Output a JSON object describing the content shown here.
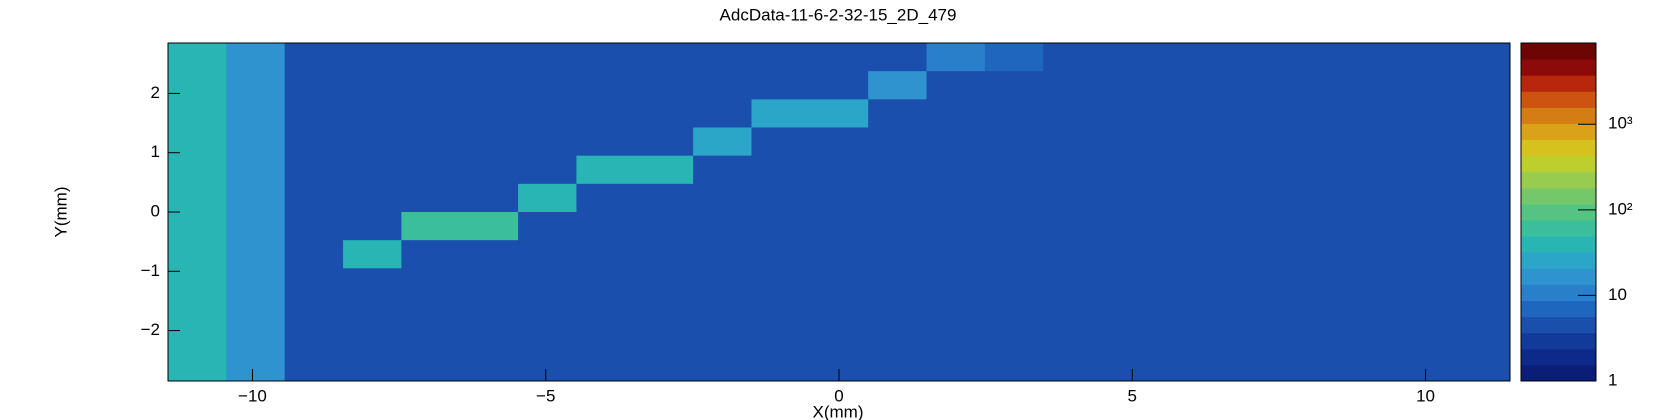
{
  "chart_data": {
    "type": "heatmap",
    "title": "AdcData-11-6-2-32-15_2D_479",
    "x_label": "X(mm)",
    "y_label": "Y(mm)",
    "xlim": [
      -11.44,
      11.44
    ],
    "ylim": [
      -2.85,
      2.85
    ],
    "xticks": [
      {
        "value": -10,
        "label": "−10"
      },
      {
        "value": -5,
        "label": "−5"
      },
      0,
      5,
      10
    ],
    "yticks": [
      {
        "value": -2,
        "label": "−2"
      },
      {
        "value": -1,
        "label": "−1"
      },
      0,
      1,
      2
    ],
    "zlim": [
      1,
      8900
    ],
    "zlog": true,
    "zticks": [
      1,
      10,
      {
        "value": 100,
        "label": "10²"
      },
      {
        "value": 1000,
        "label": "10³"
      }
    ],
    "palette": [
      "#0a1e78",
      "#0d2a8a",
      "#123a9a",
      "#1a4fae",
      "#1f66bf",
      "#2a7fcb",
      "#2f93cf",
      "#2ba6c8",
      "#28b5b3",
      "#3abf9a",
      "#55c483",
      "#75c86a",
      "#98cc4f",
      "#bccf2c",
      "#d5c21c",
      "#d9a218",
      "#d47d14",
      "#cc5410",
      "#b8270d",
      "#8c0b08",
      "#6e0505"
    ],
    "z": [
      [
        40,
        18,
        4,
        5,
        4,
        4,
        5,
        4,
        4,
        5,
        4,
        5,
        4,
        12,
        8,
        4,
        5,
        4,
        4,
        5,
        4,
        5,
        4
      ],
      [
        40,
        18,
        5,
        4,
        4,
        5,
        4,
        5,
        4,
        4,
        5,
        4,
        15,
        5,
        4,
        5,
        4,
        4,
        5,
        4,
        4,
        5,
        4
      ],
      [
        40,
        18,
        4,
        4,
        5,
        4,
        4,
        4,
        5,
        4,
        25,
        25,
        4,
        4,
        5,
        4,
        5,
        4,
        4,
        5,
        4,
        4,
        5
      ],
      [
        40,
        18,
        4,
        5,
        4,
        4,
        5,
        4,
        4,
        30,
        5,
        4,
        5,
        4,
        4,
        4,
        5,
        4,
        5,
        4,
        4,
        5,
        4
      ],
      [
        40,
        18,
        5,
        4,
        4,
        4,
        4,
        40,
        40,
        5,
        4,
        4,
        4,
        5,
        4,
        5,
        4,
        4,
        4,
        5,
        4,
        4,
        5
      ],
      [
        40,
        18,
        4,
        4,
        5,
        4,
        45,
        5,
        4,
        4,
        5,
        4,
        4,
        4,
        5,
        4,
        4,
        5,
        4,
        4,
        5,
        4,
        4
      ],
      [
        40,
        18,
        4,
        4,
        50,
        50,
        4,
        4,
        5,
        4,
        4,
        5,
        4,
        4,
        4,
        5,
        4,
        4,
        5,
        4,
        4,
        5,
        4
      ],
      [
        40,
        18,
        5,
        40,
        5,
        4,
        4,
        5,
        4,
        4,
        5,
        4,
        4,
        5,
        4,
        4,
        5,
        4,
        4,
        4,
        5,
        4,
        4
      ],
      [
        40,
        18,
        4,
        4,
        4,
        5,
        4,
        4,
        4,
        5,
        4,
        4,
        5,
        4,
        4,
        5,
        4,
        4,
        5,
        4,
        4,
        4,
        5
      ],
      [
        40,
        18,
        4,
        5,
        4,
        4,
        5,
        4,
        4,
        4,
        5,
        4,
        4,
        4,
        5,
        4,
        4,
        5,
        4,
        4,
        5,
        4,
        4
      ],
      [
        40,
        18,
        5,
        4,
        4,
        5,
        4,
        4,
        5,
        4,
        4,
        5,
        4,
        4,
        4,
        5,
        4,
        4,
        4,
        5,
        4,
        4,
        5
      ],
      [
        40,
        18,
        5,
        5,
        5,
        5,
        5,
        5,
        5,
        5,
        5,
        5,
        5,
        5,
        5,
        5,
        5,
        5,
        5,
        5,
        5,
        5,
        5
      ]
    ]
  }
}
